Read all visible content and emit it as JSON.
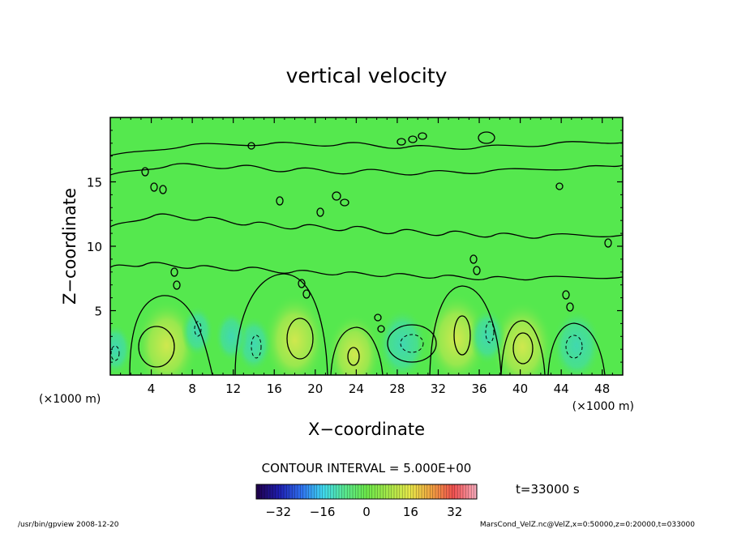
{
  "chart_data": {
    "type": "heatmap",
    "title": "vertical velocity",
    "xlabel": "X−coordinate",
    "ylabel": "Z−coordinate",
    "x_unit_left": "(×1000 m)",
    "x_unit_right": "(×1000 m)",
    "xlim": [
      0,
      50
    ],
    "ylim": [
      0,
      20
    ],
    "x_ticks": [
      4,
      8,
      12,
      16,
      20,
      24,
      28,
      32,
      36,
      40,
      44,
      48
    ],
    "y_ticks": [
      5,
      10,
      15
    ],
    "contour_interval_label": "CONTOUR INTERVAL = 5.000E+00",
    "time_label": "t=33000 s",
    "colorbar": {
      "range": [
        -40,
        40
      ],
      "ticks": [
        -32,
        -16,
        0,
        16,
        32
      ],
      "colors": [
        "#200050",
        "#1f1fb0",
        "#2f6ff0",
        "#3fd8f0",
        "#59e890",
        "#6ce84a",
        "#a6e84a",
        "#e8e84a",
        "#f0a040",
        "#f05050",
        "#f8a8b8"
      ]
    },
    "field": {
      "background_value": 0,
      "positive_regions": [
        {
          "x": 5.5,
          "z": 2.3,
          "peak": 8
        },
        {
          "x": 18.0,
          "z": 2.7,
          "peak": 8
        },
        {
          "x": 33.8,
          "z": 2.8,
          "peak": 8
        },
        {
          "x": 40.2,
          "z": 2.2,
          "peak": 8
        },
        {
          "x": 23.8,
          "z": 1.6,
          "peak": 6
        }
      ],
      "negative_regions": [
        {
          "x": 28.5,
          "z": 2.4,
          "peak": -7
        },
        {
          "x": 45.5,
          "z": 2.3,
          "peak": -7
        },
        {
          "x": 14.0,
          "z": 2.4,
          "peak": -4
        },
        {
          "x": 36.8,
          "z": 3.0,
          "peak": -4
        },
        {
          "x": 8.5,
          "z": 3.4,
          "peak": -3
        },
        {
          "x": 11.8,
          "z": 3.0,
          "peak": -3
        },
        {
          "x": 0.5,
          "z": 2.0,
          "peak": -3
        }
      ]
    }
  },
  "footer": {
    "left": "/usr/bin/gpview   2008-12-20",
    "right": "MarsCond_VelZ.nc@VelZ,x=0:50000,z=0:20000,t=033000"
  }
}
